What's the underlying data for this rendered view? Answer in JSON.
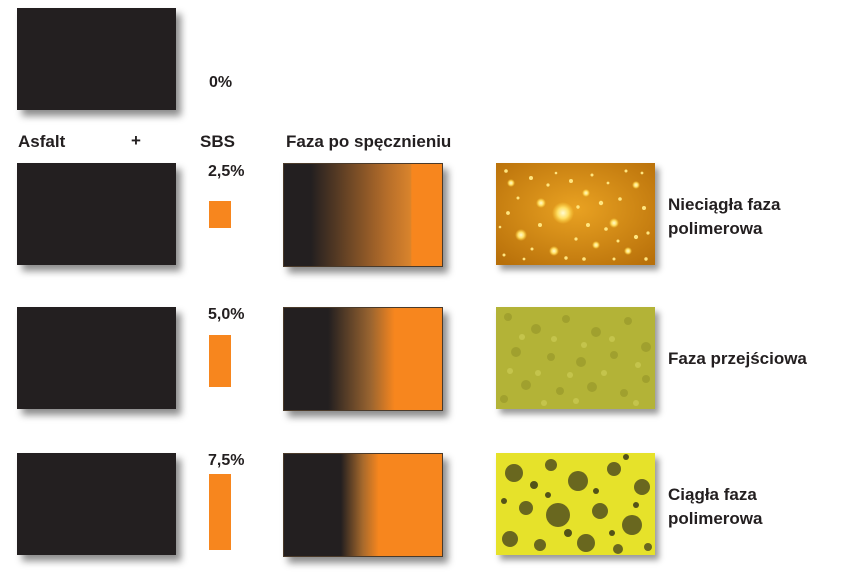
{
  "header": {
    "asphalt_label": "Asfalt",
    "plus_label": "+",
    "sbs_label": "SBS",
    "phase_label": "Faza po spęcznieniu"
  },
  "rows": [
    {
      "percent": "0%"
    },
    {
      "percent": "2,5%",
      "description": [
        "Nieciągła faza",
        "polimerowa"
      ]
    },
    {
      "percent": "5,0%",
      "description": [
        "Faza przejściowa"
      ]
    },
    {
      "percent": "7,5%",
      "description": [
        "Ciągła faza",
        "polimerowa"
      ]
    }
  ],
  "colors": {
    "asphalt": "#231f20",
    "polymer": "#f7861e"
  },
  "icons": {
    "micrograph_1": "discontinuous-polymer-micrograph",
    "micrograph_2": "transitional-phase-micrograph",
    "micrograph_3": "continuous-polymer-micrograph"
  }
}
